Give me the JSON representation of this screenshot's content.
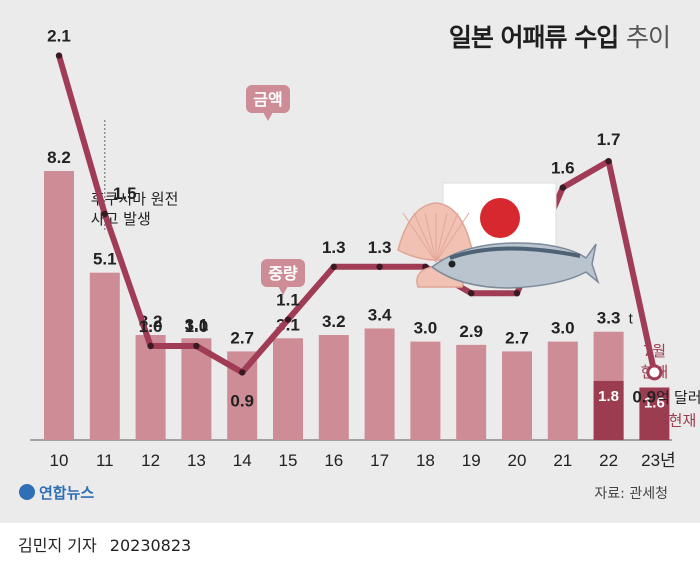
{
  "title": {
    "main": "일본 어패류 수입",
    "suffix": "추이"
  },
  "chart_data": {
    "type": "bar+line",
    "categories": [
      "10",
      "11",
      "12",
      "13",
      "14",
      "15",
      "16",
      "17",
      "18",
      "19",
      "20",
      "21",
      "22",
      "23년"
    ],
    "weight": {
      "label": "중량",
      "values": [
        8.2,
        5.1,
        3.2,
        3.1,
        2.7,
        3.1,
        3.2,
        3.4,
        3.0,
        2.9,
        2.7,
        3.0,
        3.3,
        null
      ],
      "unit": "t",
      "partial": [
        {
          "index": 12,
          "value": 1.8
        },
        {
          "index": 13,
          "value": 1.6
        }
      ],
      "partial_note": [
        "7월",
        "현재"
      ]
    },
    "amount": {
      "label": "금액",
      "values": [
        2.1,
        1.5,
        1.0,
        1.0,
        0.9,
        1.1,
        1.3,
        1.3,
        1.3,
        1.2,
        1.2,
        1.6,
        1.7,
        0.9
      ],
      "last_unit": "억 달러",
      "last_note": "7월 현재"
    },
    "annotation": [
      "후쿠시마 원전",
      "사고 발생"
    ],
    "colors": {
      "bar": "#cd8c96",
      "bar_dark": "#9c3c50",
      "line": "#a03c55"
    }
  },
  "logo": "연합뉴스",
  "source": "자료: 관세청",
  "footer": {
    "reporter": "김민지 기자",
    "date": "20230823"
  }
}
